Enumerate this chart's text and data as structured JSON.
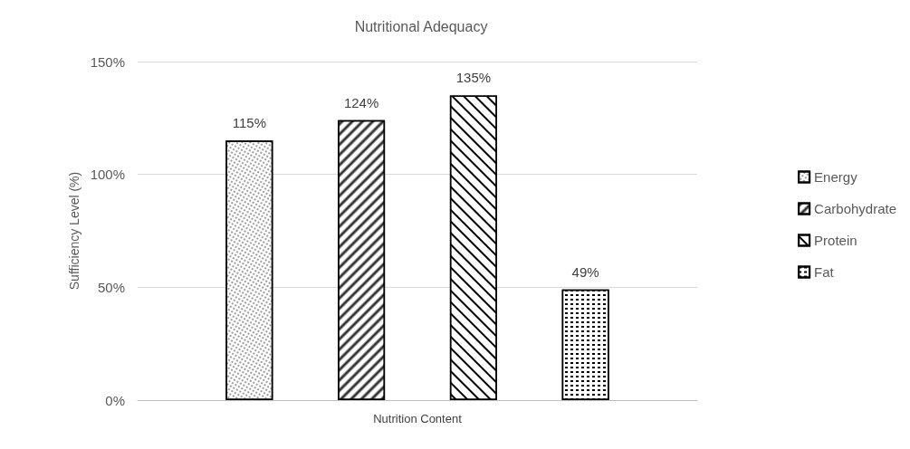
{
  "chart_data": {
    "type": "bar",
    "title": "Nutritional Adequacy",
    "xlabel": "Nutrition Content",
    "ylabel": "Sufficiency Level (%)",
    "categories": [
      null
    ],
    "series": [
      {
        "name": "Energy",
        "color": "#000000",
        "values": [
          115
        ],
        "value_labels": [
          "115%"
        ]
      },
      {
        "name": "Carbohydrate",
        "color": "#000000",
        "values": [
          124
        ],
        "value_labels": [
          "124%"
        ]
      },
      {
        "name": "Protein",
        "color": "#000000",
        "values": [
          135
        ],
        "value_labels": [
          "135%"
        ]
      },
      {
        "name": "Fat",
        "color": "#000000",
        "values": [
          49
        ],
        "value_labels": [
          "49%"
        ]
      }
    ],
    "ylim": [
      0,
      150
    ],
    "yticks": [
      {
        "value": 0,
        "label": "0%"
      },
      {
        "value": 50,
        "label": "50%"
      },
      {
        "value": 100,
        "label": "100%"
      },
      {
        "value": 150,
        "label": "150%"
      }
    ],
    "grid": "y",
    "legend": "right"
  }
}
